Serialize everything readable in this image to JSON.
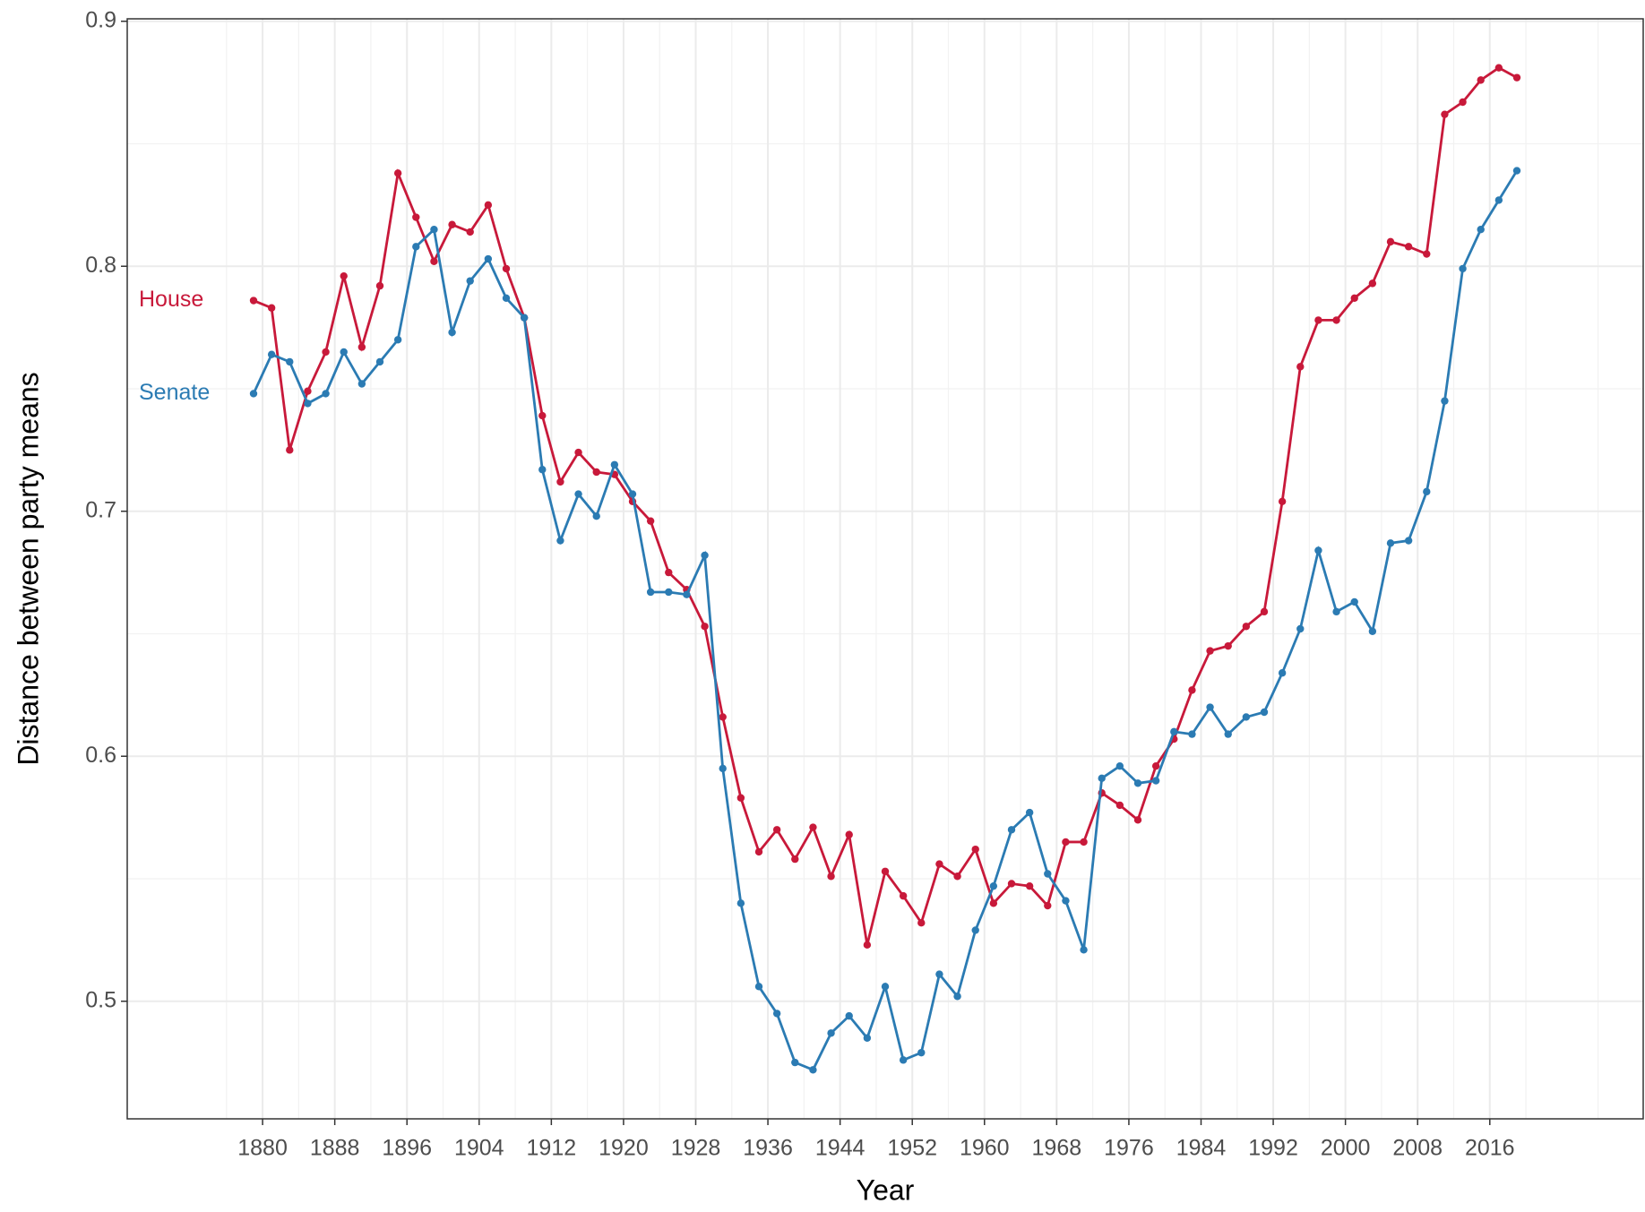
{
  "chart_data": {
    "type": "line",
    "xlabel": "Year",
    "ylabel": "Distance between party means",
    "x": [
      1879,
      1881,
      1883,
      1885,
      1887,
      1889,
      1891,
      1893,
      1895,
      1897,
      1899,
      1901,
      1903,
      1905,
      1907,
      1909,
      1911,
      1913,
      1915,
      1917,
      1919,
      1921,
      1923,
      1925,
      1927,
      1929,
      1931,
      1933,
      1935,
      1937,
      1939,
      1941,
      1943,
      1945,
      1947,
      1949,
      1951,
      1953,
      1955,
      1957,
      1959,
      1961,
      1963,
      1965,
      1967,
      1969,
      1971,
      1973,
      1975,
      1977,
      1979,
      1981,
      1983,
      1985,
      1987,
      1989,
      1991,
      1993,
      1995,
      1997,
      1999,
      2001,
      2003,
      2005,
      2007,
      2009,
      2011,
      2013,
      2015,
      2017,
      2019
    ],
    "series": [
      {
        "name": "House",
        "color": "#c8193a",
        "values": [
          0.786,
          0.783,
          0.725,
          0.749,
          0.765,
          0.796,
          0.767,
          0.792,
          0.838,
          0.82,
          0.802,
          0.817,
          0.814,
          0.825,
          0.799,
          0.779,
          0.739,
          0.712,
          0.724,
          0.716,
          0.715,
          0.704,
          0.696,
          0.675,
          0.668,
          0.653,
          0.616,
          0.583,
          0.561,
          0.57,
          0.558,
          0.571,
          0.551,
          0.568,
          0.523,
          0.553,
          0.543,
          0.532,
          0.556,
          0.551,
          0.562,
          0.54,
          0.548,
          0.547,
          0.539,
          0.565,
          0.565,
          0.585,
          0.58,
          0.574,
          0.596,
          0.607,
          0.627,
          0.643,
          0.645,
          0.653,
          0.659,
          0.704,
          0.759,
          0.778,
          0.778,
          0.787,
          0.793,
          0.81,
          0.808,
          0.805,
          0.862,
          0.867,
          0.876,
          0.881,
          0.877
        ]
      },
      {
        "name": "Senate",
        "color": "#2b7bb3",
        "values": [
          0.748,
          0.764,
          0.761,
          0.744,
          0.748,
          0.765,
          0.752,
          0.761,
          0.77,
          0.808,
          0.815,
          0.773,
          0.794,
          0.803,
          0.787,
          0.779,
          0.717,
          0.688,
          0.707,
          0.698,
          0.719,
          0.707,
          0.667,
          0.667,
          0.666,
          0.682,
          0.595,
          0.54,
          0.506,
          0.495,
          0.475,
          0.472,
          0.487,
          0.494,
          0.485,
          0.506,
          0.476,
          0.479,
          0.511,
          0.502,
          0.529,
          0.547,
          0.57,
          0.577,
          0.552,
          0.541,
          0.521,
          0.591,
          0.596,
          0.589,
          0.59,
          0.61,
          0.609,
          0.62,
          0.609,
          0.616,
          0.618,
          0.634,
          0.652,
          0.684,
          0.659,
          0.663,
          0.651,
          0.687,
          0.688,
          0.708,
          0.745,
          0.799,
          0.815,
          0.827,
          0.839
        ]
      }
    ],
    "xlim": [
      1865,
      2033
    ],
    "xticks": [
      1880,
      1888,
      1896,
      1904,
      1912,
      1920,
      1928,
      1936,
      1944,
      1952,
      1960,
      1968,
      1976,
      1984,
      1992,
      2000,
      2008,
      2016
    ],
    "ylim": [
      0.452,
      0.901
    ],
    "yticks": [
      0.5,
      0.6,
      0.7,
      0.8,
      0.9
    ],
    "grid": true
  }
}
